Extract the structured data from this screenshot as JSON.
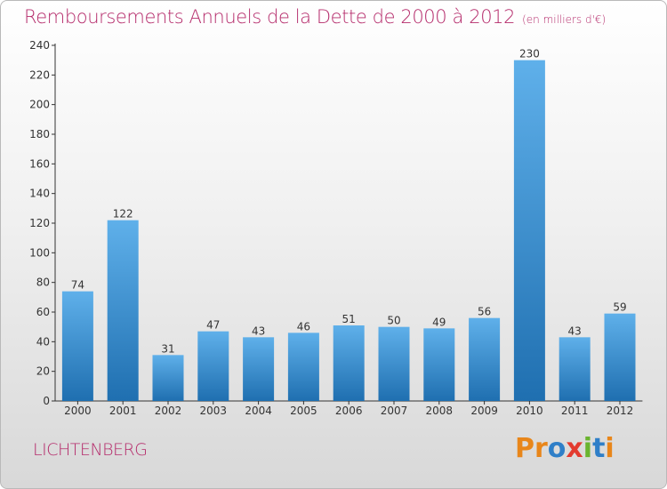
{
  "header": {
    "title": "Remboursements Annuels de la Dette de 2000 à 2012",
    "unit": "(en milliers d'€)"
  },
  "footer": {
    "city": "LICHTENBERG",
    "logo_text": "Proxiti",
    "logo_colors": [
      "#e8861a",
      "#e8861a",
      "#2f7fc8",
      "#e33b2f",
      "#6ab42f",
      "#2f7fc8",
      "#e8861a"
    ]
  },
  "colors": {
    "accent": "#b52b6b",
    "bar_top": "#5fb0ea",
    "bar_bottom": "#1f6fb0"
  },
  "chart_data": {
    "type": "bar",
    "title": "Remboursements Annuels de la Dette de 2000 à 2012",
    "xlabel": "",
    "ylabel": "",
    "categories": [
      "2000",
      "2001",
      "2002",
      "2003",
      "2004",
      "2005",
      "2006",
      "2007",
      "2008",
      "2009",
      "2010",
      "2011",
      "2012"
    ],
    "values": [
      74,
      122,
      31,
      47,
      43,
      46,
      51,
      50,
      49,
      56,
      230,
      43,
      59
    ],
    "ylim": [
      0,
      240
    ],
    "yticks": [
      0,
      20,
      40,
      60,
      80,
      100,
      120,
      140,
      160,
      180,
      200,
      220,
      240
    ],
    "grid": false,
    "data_labels": true
  }
}
